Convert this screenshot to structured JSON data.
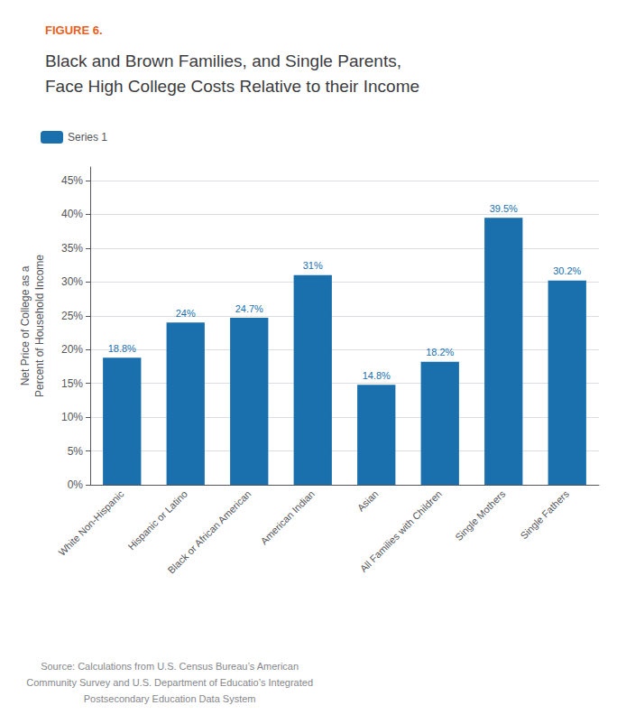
{
  "chart_data": {
    "type": "bar",
    "title": "Black and Brown Families, and Single Parents,\nFace High College Costs Relative to their Income",
    "annotations": [
      {
        "text": "FIGURE 6.",
        "color": "#e86020"
      },
      {
        "text": "Source: Calculations from U.S. Census Bureau’s American\nCommunity Survey and U.S. Department of Educatio’s Integrated\nPostsecondary Education Data System"
      }
    ],
    "ylabel": "Net Price of College as a\nPercent of Household Income",
    "categories": [
      "White Non-Hispanic",
      "Hispanic or Latino",
      "Black or African American",
      "American Indian",
      "Asian",
      "All Families with Children",
      "Single Mothers",
      "Single Fathers"
    ],
    "series": [
      {
        "name": "Series 1",
        "color": "#1a6fad",
        "values": [
          18.8,
          24.0,
          24.7,
          31.0,
          14.8,
          18.2,
          39.5,
          30.2
        ],
        "value_labels": [
          "18.8%",
          "24%",
          "24.7%",
          "31%",
          "14.8%",
          "18.2%",
          "39.5%",
          "30.2%"
        ]
      }
    ],
    "ylim": [
      0,
      47
    ],
    "yticks": [
      {
        "value": 0,
        "label": "0%"
      },
      {
        "value": 5,
        "label": "5%"
      },
      {
        "value": 10,
        "label": "10%"
      },
      {
        "value": 15,
        "label": "15%"
      },
      {
        "value": 20,
        "label": "20%"
      },
      {
        "value": 25,
        "label": "25%"
      },
      {
        "value": 30,
        "label": "30%"
      },
      {
        "value": 35,
        "label": "35%"
      },
      {
        "value": 40,
        "label": "40%"
      },
      {
        "value": 45,
        "label": "45%"
      }
    ],
    "grid": true,
    "legend": "top-left",
    "data_labels": true
  }
}
